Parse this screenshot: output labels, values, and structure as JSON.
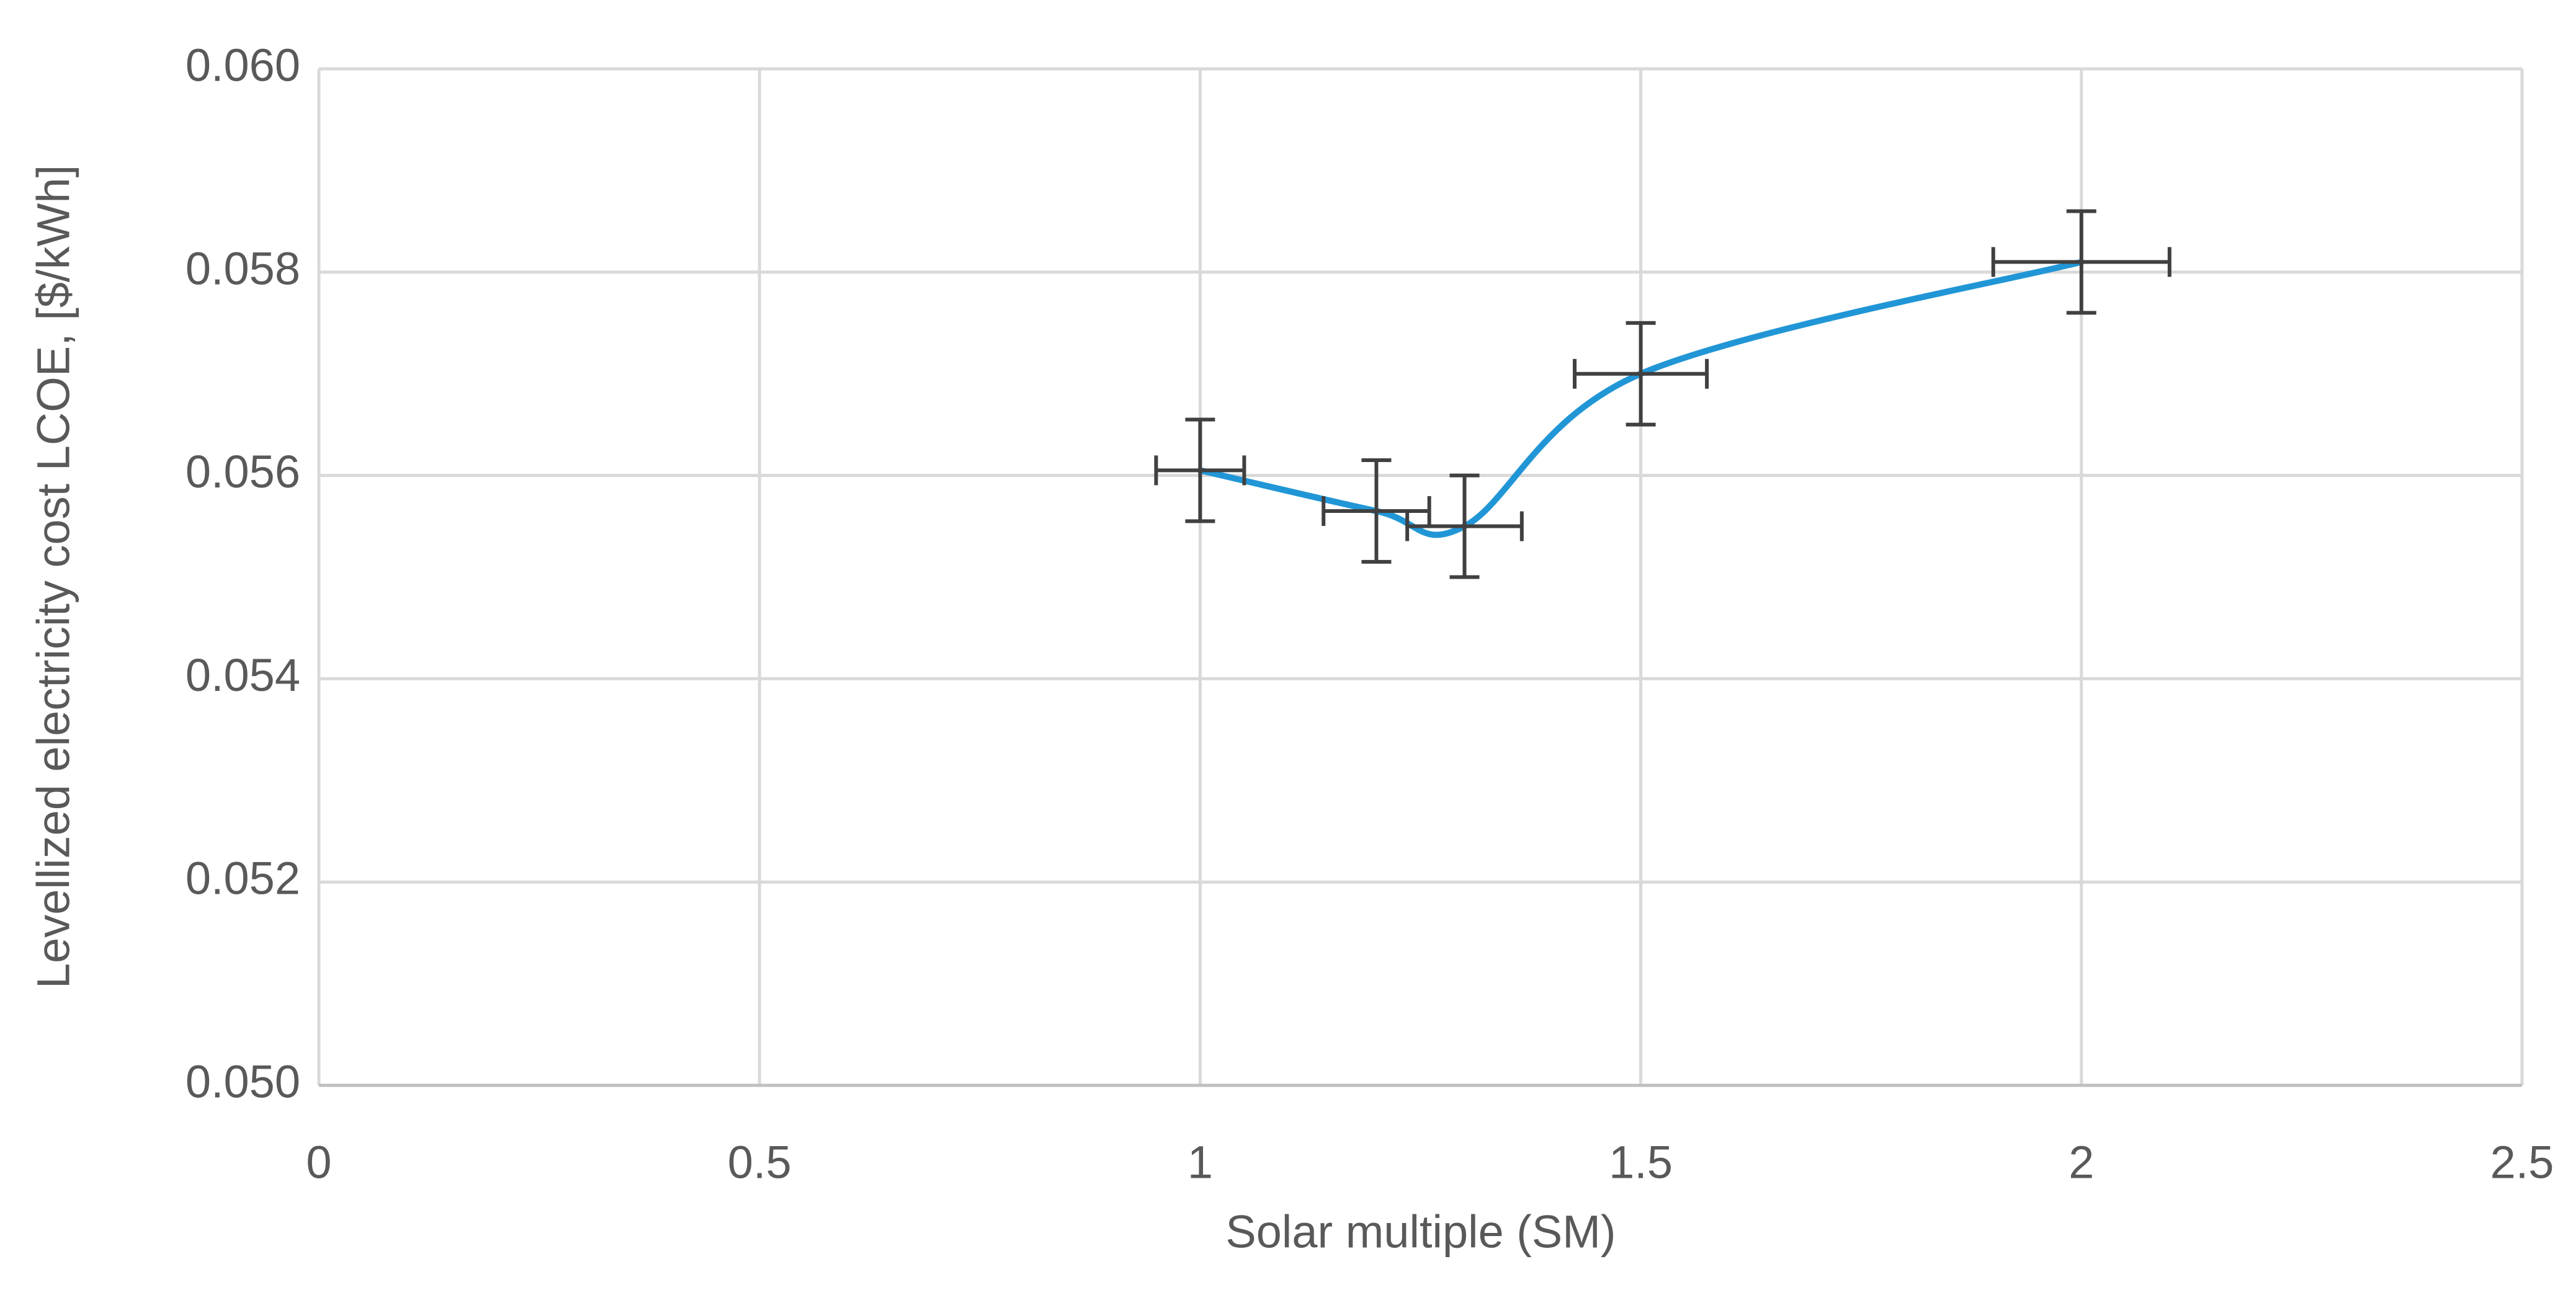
{
  "chart_data": {
    "type": "scatter",
    "x_label": "Solar multiple (SM)",
    "y_label": "Levellized electricity cost LCOE, [$/kWh]",
    "x": [
      1,
      1.2,
      1.3,
      1.5,
      2
    ],
    "series": [
      {
        "color": "#2196d6",
        "errorbar_color": "#404040",
        "values": [
          0.05605,
          0.05565,
          0.0555,
          0.057,
          0.0581
        ],
        "yerr": [
          0.0005,
          0.0005,
          0.0005,
          0.0005,
          0.0005
        ],
        "xerr": [
          0.05,
          0.06,
          0.065,
          0.075,
          0.1
        ]
      }
    ],
    "smooth": true,
    "xlim": [
      0,
      2.5
    ],
    "xticks": [
      0,
      0.5,
      1,
      1.5,
      2,
      2.5
    ],
    "ylim": [
      0.05,
      0.06
    ],
    "yticks": [
      {
        "value": 0.05,
        "label": "0.050"
      },
      {
        "value": 0.052,
        "label": "0.052"
      },
      {
        "value": 0.054,
        "label": "0.054"
      },
      {
        "value": 0.056,
        "label": "0.056"
      },
      {
        "value": 0.058,
        "label": "0.058"
      },
      {
        "value": 0.06,
        "label": "0.060"
      }
    ],
    "grid": true
  }
}
